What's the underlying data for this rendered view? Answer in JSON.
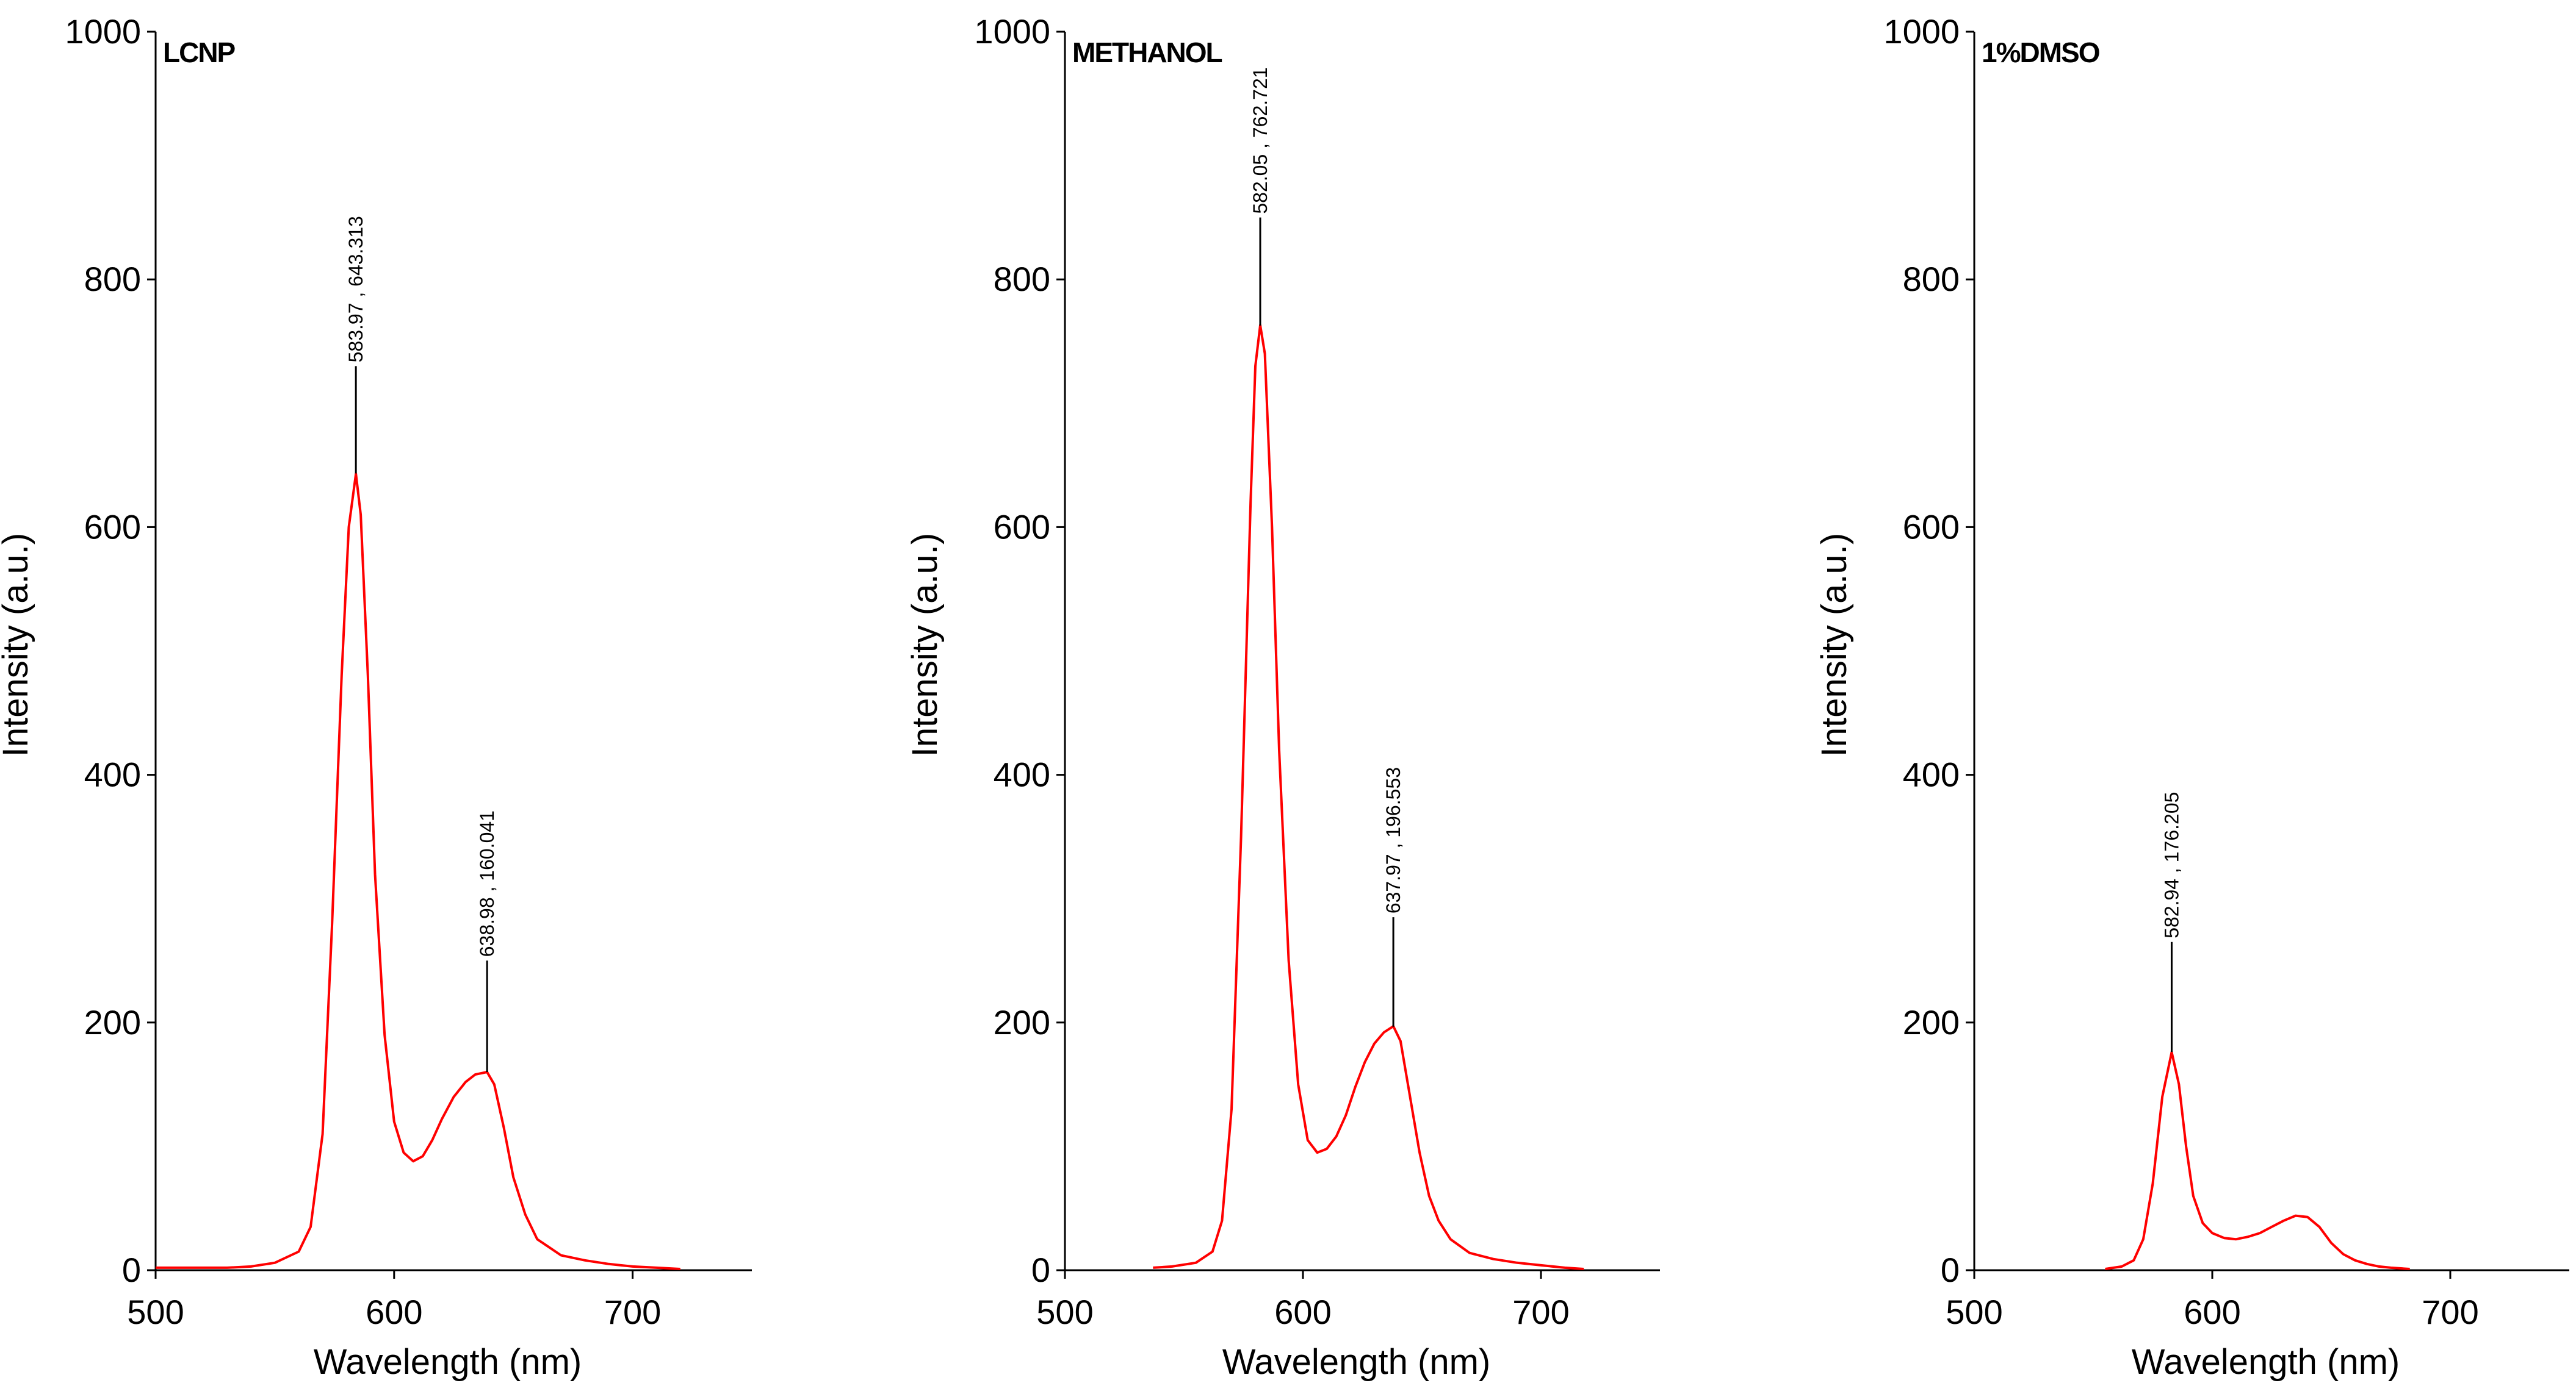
{
  "chart_data": [
    {
      "type": "line",
      "title": "LCNP",
      "xlabel": "Wavelength (nm)",
      "ylabel": "Intensity (a.u.)",
      "xlim": [
        500,
        750
      ],
      "ylim": [
        0,
        1000
      ],
      "xticks": [
        500,
        600,
        700
      ],
      "xtick_labels": [
        "500",
        "600",
        "700"
      ],
      "yticks": [
        0,
        200,
        400,
        600,
        800,
        1000
      ],
      "ytick_labels": [
        "0",
        "200",
        "400",
        "600",
        "800",
        "1000"
      ],
      "color": "#ff0000",
      "series": [
        {
          "name": "LCNP",
          "x": [
            500,
            520,
            530,
            540,
            550,
            560,
            565,
            570,
            574,
            578,
            581,
            583.97,
            586,
            589,
            592,
            596,
            600,
            604,
            608,
            612,
            616,
            620,
            625,
            630,
            634,
            638.98,
            642,
            646,
            650,
            655,
            660,
            670,
            680,
            690,
            700,
            710,
            720
          ],
          "y": [
            2,
            2,
            2,
            3,
            6,
            15,
            35,
            110,
            280,
            480,
            600,
            643,
            610,
            480,
            320,
            190,
            120,
            95,
            88,
            92,
            105,
            122,
            140,
            152,
            158,
            160,
            150,
            115,
            75,
            45,
            25,
            12,
            8,
            5,
            3,
            2,
            1
          ]
        }
      ],
      "annotations": [
        {
          "x": 583.97,
          "y": 643.313,
          "text": "583.97 , 643.313",
          "leader_top": 730
        },
        {
          "x": 638.98,
          "y": 160.041,
          "text": "638.98 , 160.041",
          "leader_top": 250
        }
      ]
    },
    {
      "type": "line",
      "title": "METHANOL",
      "xlabel": "Wavelength (nm)",
      "ylabel": "Intensity (a.u.)",
      "xlim": [
        500,
        750
      ],
      "ylim": [
        0,
        1000
      ],
      "xticks": [
        500,
        600,
        700
      ],
      "xtick_labels": [
        "500",
        "600",
        "700"
      ],
      "yticks": [
        0,
        200,
        400,
        600,
        800,
        1000
      ],
      "ytick_labels": [
        "0",
        "200",
        "400",
        "600",
        "800",
        "1000"
      ],
      "color": "#ff0000",
      "series": [
        {
          "name": "METHANOL",
          "x": [
            537,
            545,
            555,
            562,
            566,
            570,
            574,
            578,
            580,
            582.05,
            584,
            587,
            590,
            594,
            598,
            602,
            606,
            610,
            614,
            618,
            622,
            626,
            630,
            634,
            637.97,
            641,
            645,
            649,
            653,
            657,
            662,
            670,
            680,
            690,
            700,
            710,
            718
          ],
          "y": [
            2,
            3,
            6,
            15,
            40,
            130,
            350,
            620,
            730,
            763,
            740,
            600,
            420,
            250,
            150,
            105,
            95,
            98,
            108,
            125,
            148,
            168,
            183,
            192,
            197,
            185,
            140,
            95,
            60,
            40,
            25,
            14,
            9,
            6,
            4,
            2,
            1
          ]
        }
      ],
      "annotations": [
        {
          "x": 582.05,
          "y": 762.721,
          "text": "582.05 , 762.721",
          "leader_top": 850
        },
        {
          "x": 637.97,
          "y": 196.553,
          "text": "637.97 , 196.553",
          "leader_top": 285
        }
      ]
    },
    {
      "type": "line",
      "title": "1%DMSO",
      "xlabel": "Wavelength (nm)",
      "ylabel": "Intensity (a.u.)",
      "xlim": [
        500,
        750
      ],
      "ylim": [
        0,
        1000
      ],
      "xticks": [
        500,
        600,
        700
      ],
      "xtick_labels": [
        "500",
        "600",
        "700"
      ],
      "yticks": [
        0,
        200,
        400,
        600,
        800,
        1000
      ],
      "ytick_labels": [
        "0",
        "200",
        "400",
        "600",
        "800",
        "1000"
      ],
      "color": "#ff0000",
      "series": [
        {
          "name": "1%DMSO",
          "x": [
            555,
            562,
            567,
            571,
            575,
            579,
            582.94,
            586,
            589,
            592,
            596,
            600,
            605,
            610,
            615,
            620,
            625,
            630,
            635,
            640,
            645,
            650,
            655,
            660,
            665,
            670,
            675,
            683
          ],
          "y": [
            1,
            3,
            8,
            25,
            70,
            140,
            176,
            150,
            100,
            60,
            38,
            30,
            26,
            25,
            27,
            30,
            35,
            40,
            44,
            43,
            35,
            22,
            13,
            8,
            5,
            3,
            2,
            1
          ]
        }
      ],
      "annotations": [
        {
          "x": 582.94,
          "y": 176.205,
          "text": "582.94 , 176.205",
          "leader_top": 265
        }
      ]
    }
  ]
}
